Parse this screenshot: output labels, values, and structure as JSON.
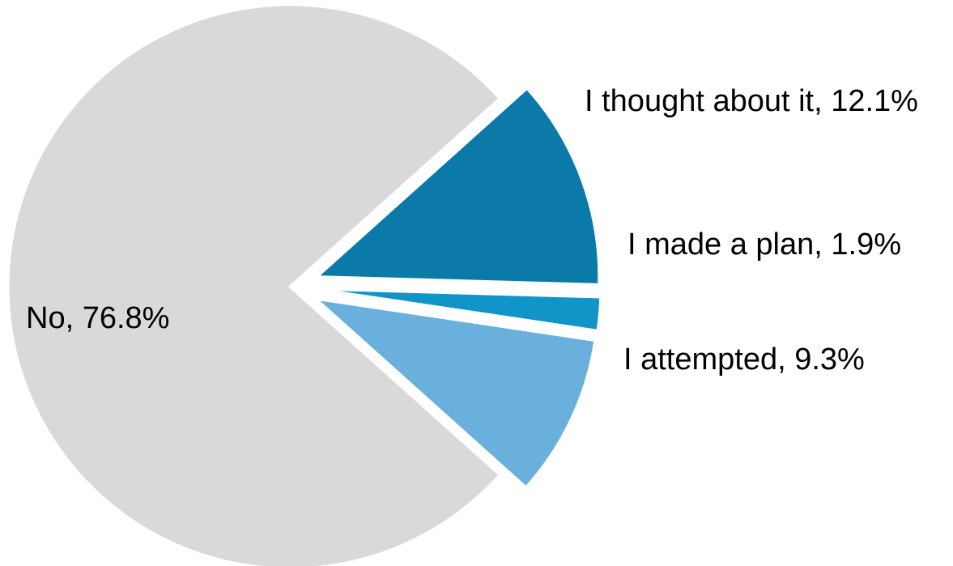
{
  "chart_data": {
    "type": "pie",
    "slices": [
      {
        "label": "No",
        "value": 76.8,
        "display": "No, 76.8%",
        "color": "#d9d9d9"
      },
      {
        "label": "I thought about it",
        "value": 12.1,
        "display": "I thought about it, 12.1%",
        "color": "#0b7aa8"
      },
      {
        "label": "I made a plan",
        "value": 1.9,
        "display": "I made a plan, 1.9%",
        "color": "#1195c9"
      },
      {
        "label": "I attempted",
        "value": 9.3,
        "display": "I attempted, 9.3%",
        "color": "#6ab0dc"
      }
    ],
    "legend": "none",
    "exploded": true
  }
}
